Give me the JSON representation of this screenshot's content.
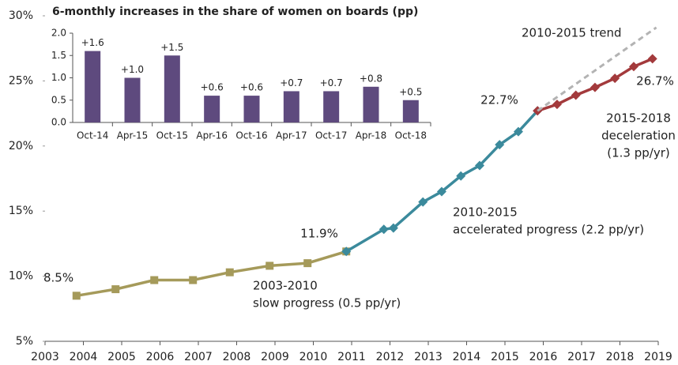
{
  "chart_data": [
    {
      "type": "line",
      "xlim": [
        2003,
        2019
      ],
      "xticks": [
        2003,
        2004,
        2005,
        2006,
        2007,
        2008,
        2009,
        2010,
        2011,
        2012,
        2013,
        2014,
        2015,
        2016,
        2017,
        2018,
        2019
      ],
      "ylim": [
        5,
        30
      ],
      "yticks": [
        {
          "value": 5,
          "label": "5%"
        },
        {
          "value": 10,
          "label": "10%"
        },
        {
          "value": 15,
          "label": "15%"
        },
        {
          "value": 20,
          "label": "20%"
        },
        {
          "value": 25,
          "label": "25%"
        },
        {
          "value": 30,
          "label": "30%"
        }
      ],
      "series": [
        {
          "color": "#a59a5a",
          "marker": "square",
          "dashed": false,
          "x": [
            2003.82,
            2004.84,
            2005.85,
            2006.86,
            2007.82,
            2008.86,
            2009.85,
            2010.86
          ],
          "values": [
            8.5,
            9.0,
            9.7,
            9.7,
            10.3,
            10.8,
            11.0,
            11.9
          ]
        },
        {
          "color": "#3b8a9c",
          "marker": "diamond",
          "dashed": false,
          "x": [
            2010.86,
            2011.84,
            2012.09,
            2012.86,
            2013.35,
            2013.85,
            2014.34,
            2014.86,
            2015.35,
            2015.85
          ],
          "values": [
            11.9,
            13.6,
            13.7,
            15.7,
            16.5,
            17.7,
            18.5,
            20.1,
            21.1,
            22.7
          ]
        },
        {
          "color": "#a33a3c",
          "marker": "diamond",
          "dashed": false,
          "x": [
            2015.85,
            2016.36,
            2016.85,
            2017.35,
            2017.87,
            2018.36,
            2018.85
          ],
          "values": [
            22.7,
            23.2,
            23.9,
            24.5,
            25.2,
            26.1,
            26.7
          ]
        },
        {
          "color": "#b3b3b3",
          "marker": "none",
          "dashed": true,
          "x": [
            2015.85,
            2018.95
          ],
          "values": [
            22.7,
            29.1
          ]
        }
      ],
      "annotations": [
        {
          "text": [
            "8.5%"
          ],
          "color": "#333333"
        },
        {
          "text": [
            "11.9%"
          ],
          "color": "#333333"
        },
        {
          "text": [
            "22.7%"
          ],
          "color": "#333333"
        },
        {
          "text": [
            "26.7%"
          ],
          "color": "#333333"
        },
        {
          "text": [
            "2003-2010",
            "slow progress (0.5 pp/yr)"
          ],
          "color": "#a59a5a"
        },
        {
          "text": [
            "2010-2015",
            "accelerated progress (2.2 pp/yr)"
          ],
          "color": "#3b8a9c"
        },
        {
          "text": [
            "2015-2018",
            "deceleration",
            "(1.3 pp/yr)"
          ],
          "color": "#a33a3c"
        },
        {
          "text": [
            "2010-2015 trend"
          ],
          "color": "#b3b3b3"
        }
      ]
    },
    {
      "type": "bar",
      "title": "6-monthly increases in the share of women on boards (pp)",
      "categories": [
        "Oct-14",
        "Apr-15",
        "Oct-15",
        "Apr-16",
        "Oct-16",
        "Apr-17",
        "Oct-17",
        "Apr-18",
        "Oct-18"
      ],
      "values": [
        1.6,
        1.0,
        1.5,
        0.6,
        0.6,
        0.7,
        0.7,
        0.8,
        0.5
      ],
      "value_labels": [
        "+1.6",
        "+1.0",
        "+1.5",
        "+0.6",
        "+0.6",
        "+0.7",
        "+0.7",
        "+0.8",
        "+0.5"
      ],
      "color": "#5e4a7e",
      "ylim": [
        0,
        2
      ],
      "yticks": [
        {
          "value": 0,
          "label": "0.0"
        },
        0.5,
        {
          "value": 1,
          "label": "1.0"
        },
        1.5,
        {
          "value": 2,
          "label": "2.0"
        }
      ]
    }
  ]
}
